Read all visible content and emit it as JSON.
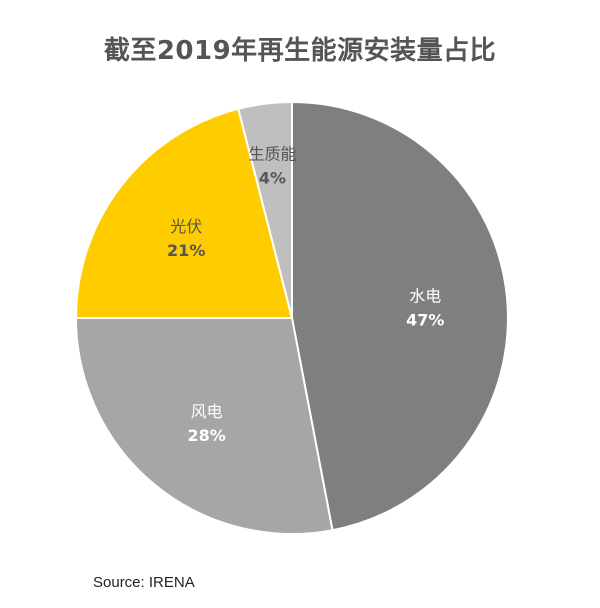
{
  "chart_data": {
    "type": "pie",
    "title": "截至2019年再生能源安装量占比",
    "start_angle_deg": 0,
    "direction": "clockwise",
    "slices": [
      {
        "label": "水电",
        "value": 47,
        "value_label": "47%",
        "color": "#7f7f7f",
        "text_color": "#ffffff"
      },
      {
        "label": "风电",
        "value": 28,
        "value_label": "28%",
        "color": "#a6a6a6",
        "text_color": "#ffffff"
      },
      {
        "label": "光伏",
        "value": 21,
        "value_label": "21%",
        "color": "#ffcc00",
        "text_color": "#555555"
      },
      {
        "label": "生质能",
        "value": 4,
        "value_label": "4%",
        "color": "#bfbfbf",
        "text_color": "#555555"
      }
    ]
  },
  "source": "Source: IRENA"
}
